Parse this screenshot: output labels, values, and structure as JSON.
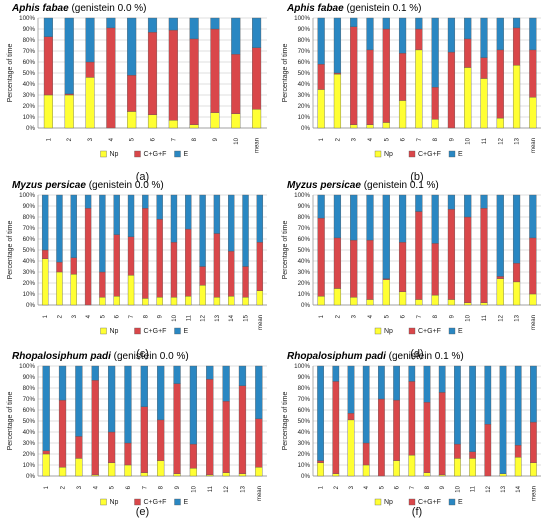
{
  "figure": {
    "panel_letters": [
      "(a)",
      "(b)",
      "(c)",
      "(d)",
      "(e)",
      "(f)"
    ]
  },
  "colors": {
    "Np": "#ffff33",
    "C+G+F": "#d9474a",
    "E": "#2a87c2"
  },
  "chart_data": [
    {
      "type": "bar",
      "stacked": true,
      "title_species": "Aphis fabae",
      "title_rest": " (genistein 0.0 %)",
      "ylabel": "Percentage of time",
      "yticks": [
        "0%",
        "10%",
        "20%",
        "30%",
        "40%",
        "50%",
        "60%",
        "70%",
        "80%",
        "90%",
        "100%"
      ],
      "ylim": [
        0,
        100
      ],
      "grid": true,
      "legend": "bottom",
      "categories": [
        "1",
        "2",
        "3",
        "4",
        "5",
        "6",
        "7",
        "8",
        "9",
        "10",
        "mean"
      ],
      "series": [
        {
          "name": "Np",
          "values": [
            30,
            30,
            46,
            0,
            15,
            12,
            7,
            3,
            14,
            13,
            17
          ]
        },
        {
          "name": "C+G+F",
          "values": [
            53,
            1,
            14,
            91,
            33,
            75,
            82,
            78,
            76,
            54,
            56
          ]
        },
        {
          "name": "E",
          "values": [
            17,
            69,
            40,
            9,
            52,
            13,
            11,
            19,
            10,
            33,
            27
          ]
        }
      ]
    },
    {
      "type": "bar",
      "stacked": true,
      "title_species": "Aphis fabae",
      "title_rest": " (genistein 0.1 %)",
      "ylabel": "Percentage of time",
      "yticks": [
        "0%",
        "10%",
        "20%",
        "30%",
        "40%",
        "50%",
        "60%",
        "70%",
        "80%",
        "90%",
        "100%"
      ],
      "ylim": [
        0,
        100
      ],
      "grid": true,
      "legend": "bottom",
      "categories": [
        "1",
        "2",
        "3",
        "4",
        "5",
        "6",
        "7",
        "8",
        "9",
        "10",
        "11",
        "12",
        "13",
        "mean"
      ],
      "series": [
        {
          "name": "Np",
          "values": [
            35,
            49,
            3,
            3,
            5,
            25,
            71,
            8,
            0,
            55,
            45,
            9,
            57,
            28
          ]
        },
        {
          "name": "C+G+F",
          "values": [
            23,
            1,
            89,
            68,
            85,
            43,
            19,
            29,
            69,
            26,
            19,
            62,
            34,
            43
          ]
        },
        {
          "name": "E",
          "values": [
            42,
            50,
            8,
            29,
            10,
            32,
            10,
            63,
            31,
            19,
            36,
            29,
            9,
            29
          ]
        }
      ]
    },
    {
      "type": "bar",
      "stacked": true,
      "title_species": "Myzus persicae",
      "title_rest": " (genistein 0.0 %)",
      "ylabel": "Percentage of time",
      "yticks": [
        "0%",
        "10%",
        "20%",
        "30%",
        "40%",
        "50%",
        "60%",
        "70%",
        "80%",
        "90%",
        "100%"
      ],
      "ylim": [
        0,
        100
      ],
      "grid": true,
      "legend": "bottom",
      "categories": [
        "1",
        "2",
        "3",
        "4",
        "5",
        "6",
        "7",
        "8",
        "9",
        "10",
        "11",
        "12",
        "13",
        "14",
        "15",
        "mean"
      ],
      "series": [
        {
          "name": "Np",
          "values": [
            42,
            30,
            28,
            0,
            7,
            8,
            27,
            6,
            7,
            7,
            8,
            18,
            7,
            8,
            7,
            13
          ]
        },
        {
          "name": "C+G+F",
          "values": [
            8,
            9,
            15,
            88,
            23,
            56,
            35,
            82,
            71,
            50,
            61,
            17,
            58,
            41,
            28,
            44
          ]
        },
        {
          "name": "E",
          "values": [
            50,
            61,
            57,
            12,
            70,
            36,
            38,
            12,
            22,
            43,
            31,
            65,
            35,
            51,
            65,
            43
          ]
        }
      ]
    },
    {
      "type": "bar",
      "stacked": true,
      "title_species": "Myzus persicae",
      "title_rest": " (genistein 0.1 %)",
      "ylabel": "Percentage of time",
      "yticks": [
        "0%",
        "10%",
        "20%",
        "30%",
        "40%",
        "50%",
        "60%",
        "70%",
        "80%",
        "90%",
        "100%"
      ],
      "ylim": [
        0,
        100
      ],
      "grid": true,
      "legend": "bottom",
      "categories": [
        "1",
        "2",
        "3",
        "4",
        "5",
        "6",
        "7",
        "8",
        "9",
        "10",
        "11",
        "12",
        "13",
        "mean"
      ],
      "series": [
        {
          "name": "Np",
          "values": [
            8,
            15,
            7,
            5,
            23,
            12,
            5,
            9,
            5,
            2,
            2,
            24,
            21,
            10
          ]
        },
        {
          "name": "C+G+F",
          "values": [
            71,
            46,
            52,
            54,
            1,
            45,
            80,
            47,
            82,
            78,
            86,
            2,
            17,
            51
          ]
        },
        {
          "name": "E",
          "values": [
            21,
            39,
            41,
            41,
            76,
            43,
            15,
            44,
            13,
            20,
            12,
            74,
            62,
            39
          ]
        }
      ]
    },
    {
      "type": "bar",
      "stacked": true,
      "title_species": "Rhopalosiphum padi",
      "title_rest": " (genistein 0.0 %)",
      "ylabel": "Percentage of time",
      "yticks": [
        "0%",
        "10%",
        "20%",
        "30%",
        "40%",
        "50%",
        "60%",
        "70%",
        "80%",
        "90%",
        "100%"
      ],
      "ylim": [
        0,
        100
      ],
      "grid": true,
      "legend": "bottom",
      "categories": [
        "1",
        "2",
        "3",
        "4",
        "5",
        "6",
        "7",
        "8",
        "9",
        "10",
        "11",
        "12",
        "13",
        "mean"
      ],
      "series": [
        {
          "name": "Np",
          "values": [
            20,
            8,
            16,
            1,
            12,
            10,
            3,
            14,
            2,
            7,
            1,
            3,
            2,
            8
          ]
        },
        {
          "name": "C+G+F",
          "values": [
            3,
            61,
            20,
            86,
            28,
            20,
            60,
            37,
            82,
            22,
            87,
            65,
            80,
            44
          ]
        },
        {
          "name": "E",
          "values": [
            77,
            31,
            64,
            13,
            60,
            70,
            37,
            49,
            16,
            71,
            12,
            32,
            18,
            48
          ]
        }
      ]
    },
    {
      "type": "bar",
      "stacked": true,
      "title_species": "Rhopalosiphum padi",
      "title_rest": " (genistein 0.1 %)",
      "ylabel": "Percentage of time",
      "yticks": [
        "0%",
        "10%",
        "20%",
        "30%",
        "40%",
        "50%",
        "60%",
        "70%",
        "80%",
        "90%",
        "100%"
      ],
      "ylim": [
        0,
        100
      ],
      "grid": true,
      "legend": "bottom",
      "categories": [
        "1",
        "2",
        "3",
        "4",
        "5",
        "6",
        "7",
        "8",
        "9",
        "10",
        "11",
        "12",
        "13",
        "14",
        "mean"
      ],
      "series": [
        {
          "name": "Np",
          "values": [
            12,
            2,
            51,
            10,
            0,
            14,
            19,
            3,
            1,
            16,
            16,
            0,
            2,
            17,
            12
          ]
        },
        {
          "name": "C+G+F",
          "values": [
            2,
            84,
            6,
            20,
            70,
            55,
            67,
            64,
            75,
            13,
            6,
            47,
            0,
            11,
            37
          ]
        },
        {
          "name": "E",
          "values": [
            86,
            14,
            43,
            70,
            30,
            31,
            14,
            33,
            24,
            71,
            78,
            53,
            98,
            72,
            51
          ]
        }
      ]
    }
  ]
}
